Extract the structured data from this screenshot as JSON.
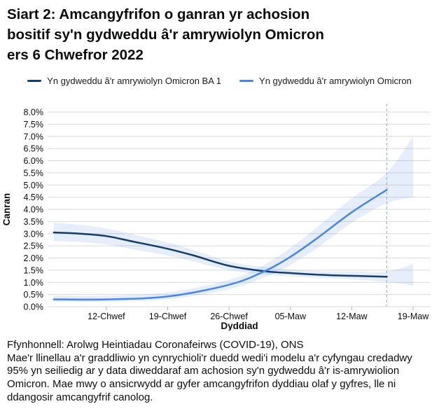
{
  "header": {
    "title_lines": [
      "Siart 2: Amcangyfrifon o ganran yr achosion",
      "bositif sy'n gydweddu â'r amrywiolyn Omicron",
      "ers 6 Chwefror 2022"
    ]
  },
  "legend": [
    {
      "label": "Yn gydweddu â'r amrywiolyn Omicron BA 1",
      "color": "#143c6e"
    },
    {
      "label": "Yn gydweddu â'r amrywiolyn Omicron",
      "color": "#4a86e8"
    }
  ],
  "chart_data": {
    "type": "line",
    "title": "Siart 2: Amcangyfrifon o ganran yr achosion bositif sy'n gydweddu â'r amrywiolyn Omicron ers 6 Chwefror 2022",
    "xlabel": "Dyddiad",
    "ylabel": "Canran",
    "ylim": [
      0,
      8
    ],
    "y_tick_step": 0.5,
    "y_tick_labels": [
      "0.0%",
      "0.5%",
      "1.0%",
      "1.5%",
      "2.0%",
      "2.5%",
      "3.0%",
      "3.5%",
      "4.0%",
      "4.5%",
      "5.0%",
      "5.5%",
      "6.0%",
      "6.5%",
      "7.0%",
      "7.5%",
      "8.0%"
    ],
    "x_ticks": [
      {
        "label": "12-Chwef",
        "day": 6
      },
      {
        "label": "19-Chwef",
        "day": 13
      },
      {
        "label": "26-Chwef",
        "day": 20
      },
      {
        "label": "05-Maw",
        "day": 27
      },
      {
        "label": "12-Maw",
        "day": 34
      },
      {
        "label": "19-Maw",
        "day": 41
      }
    ],
    "x_start_date": "06 Chwefror 2022",
    "x_range_days": [
      0,
      41
    ],
    "dashed_vline_day": 38,
    "grid": true,
    "legend_position": "top",
    "band_fill": "#6d9ee6",
    "band_opacity": 0.18,
    "gridline_color": "#d9d9d9",
    "tick_color": "#b3b3b3",
    "dashed_color": "#a9bcd4",
    "series": [
      {
        "name": "Yn gydweddu â'r amrywiolyn Omicron BA 1",
        "color": "#143c6e",
        "line": [
          [
            0,
            3.05
          ],
          [
            3,
            3.0
          ],
          [
            6,
            2.9
          ],
          [
            9,
            2.68
          ],
          [
            13,
            2.38
          ],
          [
            16,
            2.1
          ],
          [
            20,
            1.68
          ],
          [
            24,
            1.46
          ],
          [
            27,
            1.38
          ],
          [
            31,
            1.3
          ],
          [
            34,
            1.27
          ],
          [
            38,
            1.23
          ]
        ],
        "band": [
          [
            0,
            2.7,
            3.45
          ],
          [
            3,
            2.66,
            3.36
          ],
          [
            6,
            2.56,
            3.22
          ],
          [
            9,
            2.36,
            2.97
          ],
          [
            13,
            2.1,
            2.64
          ],
          [
            16,
            1.85,
            2.32
          ],
          [
            20,
            1.5,
            1.86
          ],
          [
            24,
            1.32,
            1.62
          ],
          [
            27,
            1.25,
            1.53
          ],
          [
            31,
            1.17,
            1.45
          ],
          [
            34,
            1.12,
            1.44
          ],
          [
            38,
            1.02,
            1.45
          ],
          [
            41,
            0.85,
            1.75
          ]
        ]
      },
      {
        "name": "Yn gydweddu â'r amrywiolyn Omicron",
        "color": "#4a86e8",
        "line": [
          [
            0,
            0.3
          ],
          [
            6,
            0.3
          ],
          [
            13,
            0.42
          ],
          [
            20,
            0.9
          ],
          [
            24,
            1.45
          ],
          [
            27,
            2.05
          ],
          [
            30,
            2.8
          ],
          [
            34,
            3.88
          ],
          [
            38,
            4.8
          ]
        ],
        "band": [
          [
            0,
            0.2,
            0.45
          ],
          [
            6,
            0.2,
            0.45
          ],
          [
            13,
            0.3,
            0.58
          ],
          [
            20,
            0.72,
            1.1
          ],
          [
            24,
            1.2,
            1.72
          ],
          [
            27,
            1.72,
            2.42
          ],
          [
            30,
            2.4,
            3.25
          ],
          [
            34,
            3.45,
            4.45
          ],
          [
            38,
            4.25,
            5.5
          ],
          [
            41,
            4.5,
            7.0
          ]
        ]
      }
    ]
  },
  "footer": {
    "source": "Ffynhonnell: Arolwg Heintiadau Coronafeirws (COVID-19), ONS",
    "note": "Mae'r llinellau a'r graddliwio yn cynrychioli'r duedd wedi'i modelu a'r cyfyngau credadwy 95% yn seiliedig ar y data diweddaraf am achosion sy'n gydweddu â'r is-amrywiolion Omicron. Mae mwy o ansicrwydd ar gyfer amcangyfrifon dyddiau olaf y gyfres, lle ni ddangosir amcangyfrif canolog."
  }
}
